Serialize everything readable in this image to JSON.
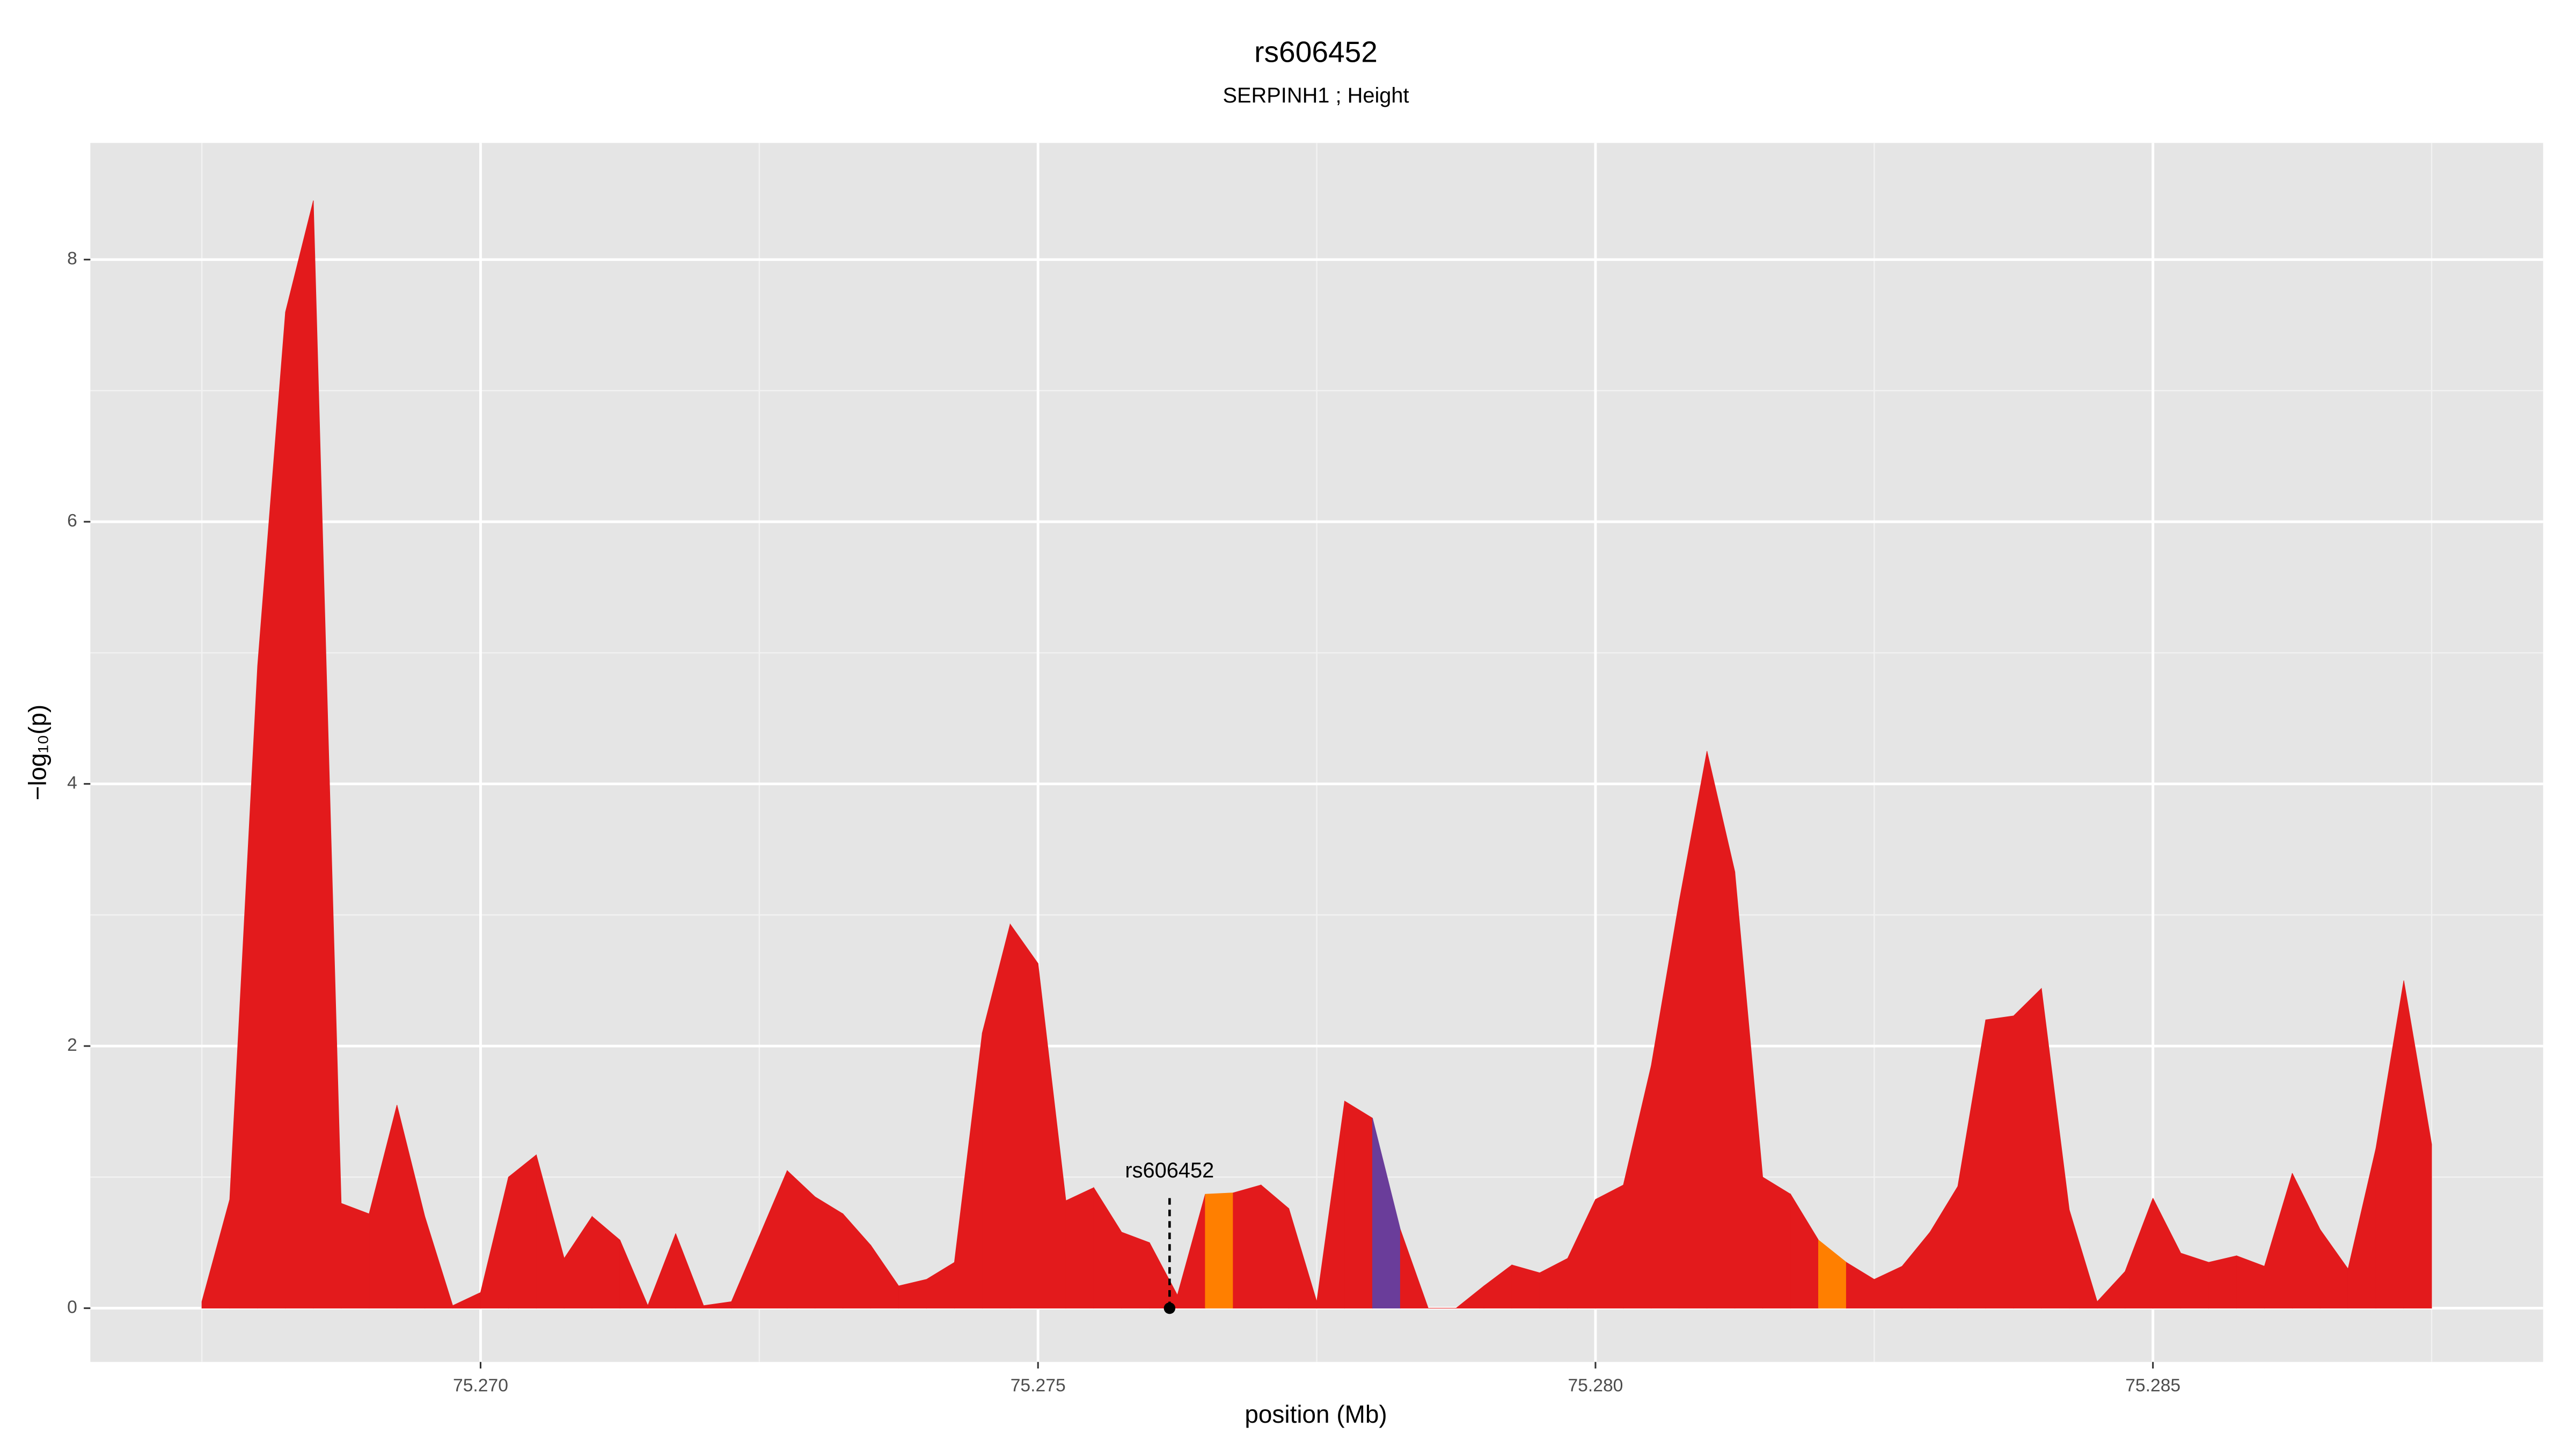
{
  "chart_data": {
    "type": "area",
    "title": "rs606452",
    "subtitle": "SERPINH1 ; Height",
    "xlabel": "position (Mb)",
    "ylabel": "−log₁₀(p)",
    "x": [
      75.2675,
      75.26775,
      75.268,
      75.26825,
      75.2685,
      75.26875,
      75.269,
      75.26925,
      75.2695,
      75.26975,
      75.27,
      75.27025,
      75.2705,
      75.27075,
      75.271,
      75.27125,
      75.2715,
      75.27175,
      75.272,
      75.27225,
      75.2725,
      75.27275,
      75.273,
      75.27325,
      75.2735,
      75.27375,
      75.274,
      75.27425,
      75.2745,
      75.27475,
      75.275,
      75.27525,
      75.2755,
      75.27575,
      75.276,
      75.27625,
      75.2765,
      75.27675,
      75.277,
      75.27725,
      75.2775,
      75.27775,
      75.278,
      75.27825,
      75.2785,
      75.27875,
      75.279,
      75.27925,
      75.2795,
      75.27975,
      75.28,
      75.28025,
      75.2805,
      75.28075,
      75.281,
      75.28125,
      75.2815,
      75.28175,
      75.282,
      75.28225,
      75.2825,
      75.28275,
      75.283,
      75.28325,
      75.2835,
      75.28375,
      75.284,
      75.28425,
      75.2845,
      75.28475,
      75.285,
      75.28525,
      75.2855,
      75.28575,
      75.286,
      75.28625,
      75.2865,
      75.28675,
      75.287,
      75.28725,
      75.2875
    ],
    "values": [
      0.05,
      0.83,
      4.9,
      7.6,
      8.45,
      0.8,
      0.72,
      1.55,
      0.7,
      0.02,
      0.12,
      1.0,
      1.17,
      0.38,
      0.7,
      0.52,
      0.02,
      0.57,
      0.02,
      0.05,
      0.55,
      1.05,
      0.85,
      0.72,
      0.48,
      0.17,
      0.22,
      0.35,
      2.1,
      2.93,
      2.63,
      0.82,
      0.92,
      0.58,
      0.5,
      0.1,
      0.87,
      0.88,
      0.94,
      0.76,
      0.05,
      1.58,
      1.45,
      0.6,
      0.0,
      0.0,
      0.17,
      0.33,
      0.27,
      0.38,
      0.83,
      0.94,
      1.85,
      3.1,
      4.25,
      3.33,
      1.0,
      0.87,
      0.52,
      0.35,
      0.22,
      0.32,
      0.58,
      0.93,
      2.2,
      2.23,
      2.44,
      0.75,
      0.05,
      0.28,
      0.84,
      0.42,
      0.35,
      0.4,
      0.32,
      1.03,
      0.6,
      0.3,
      1.22,
      2.5,
      1.25
    ],
    "segment_colors": [
      "#e31a1c",
      "#e31a1c",
      "#e31a1c",
      "#e31a1c",
      "#e31a1c",
      "#e31a1c",
      "#e31a1c",
      "#e31a1c",
      "#e31a1c",
      "#e31a1c",
      "#e31a1c",
      "#e31a1c",
      "#e31a1c",
      "#e31a1c",
      "#e31a1c",
      "#e31a1c",
      "#e31a1c",
      "#e31a1c",
      "#e31a1c",
      "#e31a1c",
      "#e31a1c",
      "#e31a1c",
      "#e31a1c",
      "#e31a1c",
      "#e31a1c",
      "#e31a1c",
      "#e31a1c",
      "#e31a1c",
      "#e31a1c",
      "#e31a1c",
      "#e31a1c",
      "#e31a1c",
      "#e31a1c",
      "#e31a1c",
      "#e31a1c",
      "#e31a1c",
      "#ff7f00",
      "#e31a1c",
      "#e31a1c",
      "#e31a1c",
      "#e31a1c",
      "#e31a1c",
      "#6a3d9a",
      "#e31a1c",
      "#e31a1c",
      "#e31a1c",
      "#e31a1c",
      "#e31a1c",
      "#e31a1c",
      "#e31a1c",
      "#e31a1c",
      "#e31a1c",
      "#e31a1c",
      "#e31a1c",
      "#e31a1c",
      "#e31a1c",
      "#e31a1c",
      "#e31a1c",
      "#ff7f00",
      "#e31a1c",
      "#e31a1c",
      "#e31a1c",
      "#e31a1c",
      "#e31a1c",
      "#e31a1c",
      "#e31a1c",
      "#e31a1c",
      "#e31a1c",
      "#e31a1c",
      "#e31a1c",
      "#e31a1c",
      "#e31a1c",
      "#e31a1c",
      "#e31a1c",
      "#e31a1c",
      "#e31a1c",
      "#e31a1c",
      "#e31a1c",
      "#e31a1c",
      "#e31a1c"
    ],
    "annotation": {
      "text": "rs606452",
      "x": 75.27618,
      "y": 0
    },
    "xlim": [
      75.2665,
      75.2885
    ],
    "ylim": [
      -0.41,
      8.89
    ],
    "xticks": [
      {
        "value": 75.27,
        "label": "75.270"
      },
      {
        "value": 75.275,
        "label": "75.275"
      },
      {
        "value": 75.28,
        "label": "75.280"
      },
      {
        "value": 75.285,
        "label": "75.285"
      }
    ],
    "yticks": [
      0,
      2,
      4,
      6,
      8
    ],
    "xminor": [
      75.2675,
      75.2725,
      75.2775,
      75.2825,
      75.2875
    ],
    "yminor": [
      1,
      3,
      5,
      7
    ],
    "grid": true,
    "panel_color": "#e5e5e5"
  }
}
